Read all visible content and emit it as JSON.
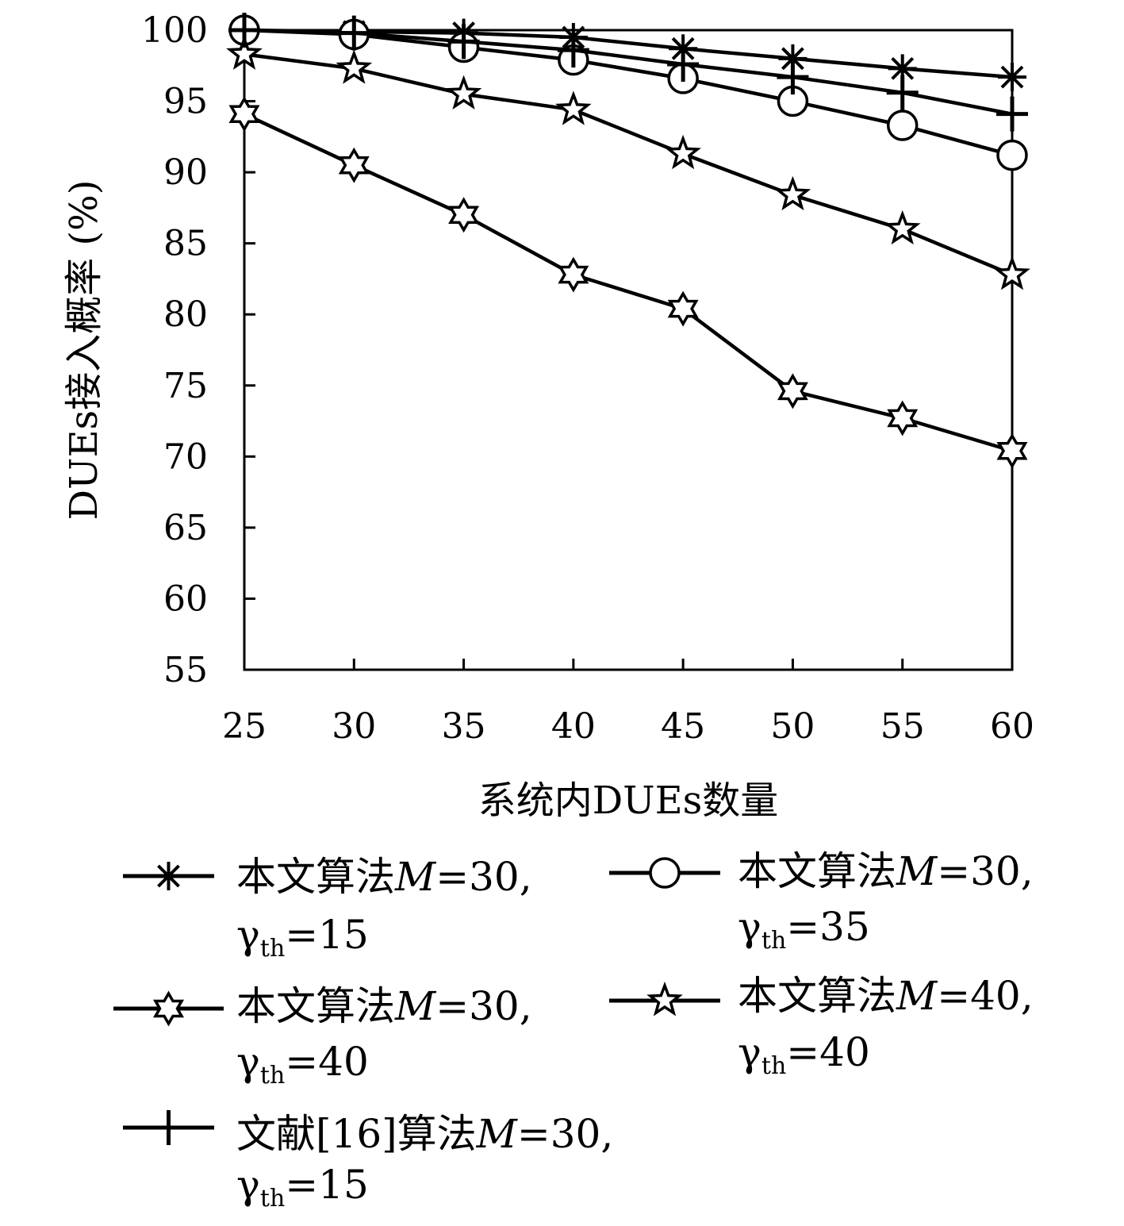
{
  "chart_data": {
    "type": "line",
    "title": "",
    "xlabel": "系统内DUEs数量",
    "ylabel": "DUEs接入概率 (%)",
    "x": [
      25,
      30,
      35,
      40,
      45,
      50,
      55,
      60
    ],
    "xlim": [
      25,
      60
    ],
    "ylim": [
      55,
      100
    ],
    "xticks": [
      "25",
      "30",
      "35",
      "40",
      "45",
      "50",
      "55",
      "60"
    ],
    "yticks": [
      "55",
      "60",
      "65",
      "70",
      "75",
      "80",
      "85",
      "90",
      "95",
      "100"
    ],
    "grid": false,
    "legend_position": "bottom",
    "series": [
      {
        "name": "本文算法M=30, γth=15",
        "legend": {
          "prefix": "本文算法",
          "var": "M",
          "mid": "=30,",
          "gamma": "γ",
          "sub": "th",
          "suffix": "=15"
        },
        "marker": "asterisk",
        "values": [
          100,
          99.9,
          99.8,
          99.5,
          98.7,
          98.0,
          97.3,
          96.7
        ]
      },
      {
        "name": "本文算法M=30, γth=35",
        "legend": {
          "prefix": "本文算法",
          "var": "M",
          "mid": "=30,",
          "gamma": "γ",
          "sub": "th",
          "suffix": "=35"
        },
        "marker": "circle",
        "values": [
          100,
          99.7,
          98.8,
          97.9,
          96.6,
          95.0,
          93.3,
          91.2
        ]
      },
      {
        "name": "本文算法M=30, γth=40",
        "legend": {
          "prefix": "本文算法",
          "var": "M",
          "mid": "=30,",
          "gamma": "γ",
          "sub": "th",
          "suffix": "=40"
        },
        "marker": "hexagram",
        "values": [
          94.1,
          90.5,
          87.0,
          82.8,
          80.4,
          74.6,
          72.7,
          70.4
        ]
      },
      {
        "name": "本文算法M=40, γth=40",
        "legend": {
          "prefix": "本文算法",
          "var": "M",
          "mid": "=40,",
          "gamma": "γ",
          "sub": "th",
          "suffix": "=40"
        },
        "marker": "star",
        "values": [
          98.3,
          97.3,
          95.5,
          94.4,
          91.3,
          88.4,
          86.0,
          82.8
        ]
      },
      {
        "name": "文献[16]算法M=30, γth=15",
        "legend": {
          "prefix": "文献[16]算法",
          "var": "M",
          "mid": "=30,",
          "gamma": "γ",
          "sub": "th",
          "suffix": "=15"
        },
        "marker": "plus",
        "values": [
          100,
          99.8,
          99.2,
          98.6,
          97.6,
          96.7,
          95.6,
          94.1
        ]
      }
    ]
  }
}
